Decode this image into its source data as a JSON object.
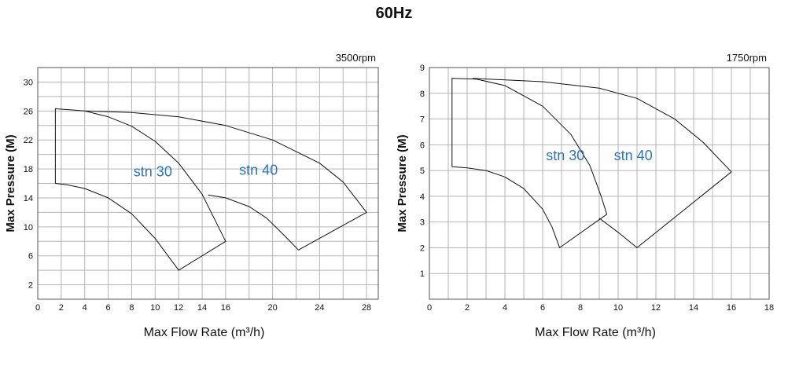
{
  "page": {
    "title": "60Hz"
  },
  "chart_data": [
    {
      "type": "area",
      "note": "3500rpm",
      "xlabel": "Max Flow Rate (m³/h)",
      "ylabel": "Max Pressure (M)",
      "xlim": [
        0,
        29
      ],
      "ylim": [
        0,
        32
      ],
      "xticks": [
        0,
        2,
        4,
        6,
        8,
        10,
        12,
        14,
        16,
        20,
        24,
        28
      ],
      "xgrid": [
        0,
        2,
        4,
        6,
        8,
        10,
        12,
        14,
        16,
        18,
        20,
        22,
        24,
        26,
        28
      ],
      "yticks": [
        2,
        6,
        10,
        14,
        18,
        22,
        26,
        30
      ],
      "ygrid": [
        0,
        2,
        4,
        6,
        8,
        10,
        12,
        14,
        16,
        18,
        20,
        22,
        24,
        26,
        28,
        30,
        32
      ],
      "series": [
        {
          "name": "stn 30",
          "label_at": [
            9.8,
            17
          ],
          "points": [
            [
              1.5,
              16
            ],
            [
              1.5,
              26.3
            ],
            [
              2.5,
              26.2
            ],
            [
              4,
              26
            ],
            [
              6,
              25.2
            ],
            [
              8,
              23.9
            ],
            [
              10,
              21.8
            ],
            [
              12,
              18.8
            ],
            [
              14,
              14.5
            ],
            [
              16,
              8
            ],
            [
              12,
              4
            ],
            [
              11,
              6.2
            ],
            [
              10,
              8.4
            ],
            [
              8,
              11.8
            ],
            [
              6,
              14
            ],
            [
              4,
              15.3
            ],
            [
              2.5,
              15.8
            ],
            [
              1.5,
              16
            ]
          ]
        },
        {
          "name": "stn 40",
          "label_at": [
            18.8,
            17.2
          ],
          "points": [
            [
              4,
              26
            ],
            [
              8,
              25.8
            ],
            [
              12,
              25.2
            ],
            [
              16,
              24
            ],
            [
              20,
              22
            ],
            [
              24,
              18.8
            ],
            [
              26,
              16.2
            ],
            [
              28,
              12
            ],
            [
              22.2,
              6.8
            ],
            [
              21,
              8.8
            ],
            [
              19.5,
              11.2
            ],
            [
              18,
              12.8
            ],
            [
              16,
              14
            ],
            [
              14.5,
              14.4
            ]
          ]
        }
      ]
    },
    {
      "type": "area",
      "note": "1750rpm",
      "xlabel": "Max Flow Rate (m³/h)",
      "ylabel": "Max Pressure (M)",
      "xlim": [
        0,
        18
      ],
      "ylim": [
        0,
        9
      ],
      "xticks": [
        0,
        2,
        4,
        6,
        8,
        10,
        12,
        14,
        16,
        18
      ],
      "xgrid": [
        0,
        1,
        2,
        3,
        4,
        5,
        6,
        7,
        8,
        9,
        10,
        11,
        12,
        13,
        14,
        15,
        16,
        17,
        18
      ],
      "yticks": [
        1,
        2,
        3,
        4,
        5,
        6,
        7,
        8,
        9
      ],
      "ygrid": [
        0,
        1,
        2,
        3,
        4,
        5,
        6,
        7,
        8,
        9
      ],
      "series": [
        {
          "name": "stn 30",
          "label_at": [
            7.2,
            5.4
          ],
          "points": [
            [
              1.2,
              5.15
            ],
            [
              1.2,
              8.58
            ],
            [
              2.5,
              8.55
            ],
            [
              4,
              8.3
            ],
            [
              6,
              7.5
            ],
            [
              7.5,
              6.4
            ],
            [
              8.5,
              5.2
            ],
            [
              9.1,
              4
            ],
            [
              9.4,
              3.3
            ],
            [
              6.9,
              2
            ],
            [
              6.5,
              2.8
            ],
            [
              6,
              3.5
            ],
            [
              5,
              4.3
            ],
            [
              4,
              4.75
            ],
            [
              3,
              5
            ],
            [
              2,
              5.1
            ],
            [
              1.2,
              5.15
            ]
          ]
        },
        {
          "name": "stn 40",
          "label_at": [
            10.8,
            5.4
          ],
          "points": [
            [
              2.3,
              8.58
            ],
            [
              6,
              8.45
            ],
            [
              9,
              8.2
            ],
            [
              11,
              7.8
            ],
            [
              13,
              7
            ],
            [
              14.5,
              6.1
            ],
            [
              16,
              4.95
            ],
            [
              11,
              2
            ],
            [
              10,
              2.6
            ],
            [
              9,
              3.15
            ]
          ]
        }
      ]
    }
  ]
}
